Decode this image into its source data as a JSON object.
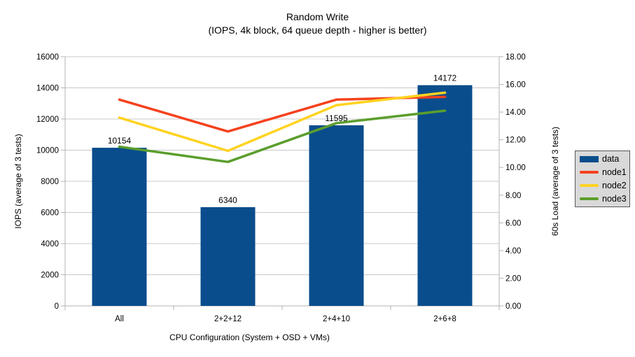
{
  "chart_data": {
    "type": "bar+line",
    "title": "Random Write",
    "subtitle": "(IOPS, 4k block, 64 queue depth - higher is better)",
    "categories": [
      "All",
      "2+2+12",
      "2+4+10",
      "2+6+8"
    ],
    "xlabel": "CPU Configuration (System + OSD + VMs)",
    "left_axis": {
      "label": "IOPS (average of 3 tests)",
      "min": 0,
      "max": 16000,
      "step": 2000
    },
    "right_axis": {
      "label": "60s Load (average of 3 tests)",
      "min": 0,
      "max": 18,
      "step": 2
    },
    "bar_series": {
      "name": "data",
      "axis": "left",
      "color": "#0a4d8c",
      "values": [
        10154,
        6340,
        11595,
        14172
      ],
      "data_labels": [
        "10154",
        "6340",
        "11595",
        "14172"
      ]
    },
    "line_series": [
      {
        "name": "node1",
        "axis": "right",
        "color": "#f5411d",
        "values": [
          14.9,
          12.6,
          14.9,
          15.1
        ]
      },
      {
        "name": "node2",
        "axis": "right",
        "color": "#ffd320",
        "values": [
          13.6,
          11.2,
          14.5,
          15.4
        ]
      },
      {
        "name": "node3",
        "axis": "right",
        "color": "#5b9e2d",
        "values": [
          11.5,
          10.4,
          13.2,
          14.1
        ]
      }
    ],
    "legend": {
      "position": "right",
      "items": [
        "data",
        "node1",
        "node2",
        "node3"
      ]
    },
    "grid": true,
    "colors": {
      "gridline": "#c8c8c8",
      "axis": "#b3b3b3",
      "text": "#000000",
      "legend_bg": "#d9d9d9",
      "legend_border": "#595959"
    }
  }
}
